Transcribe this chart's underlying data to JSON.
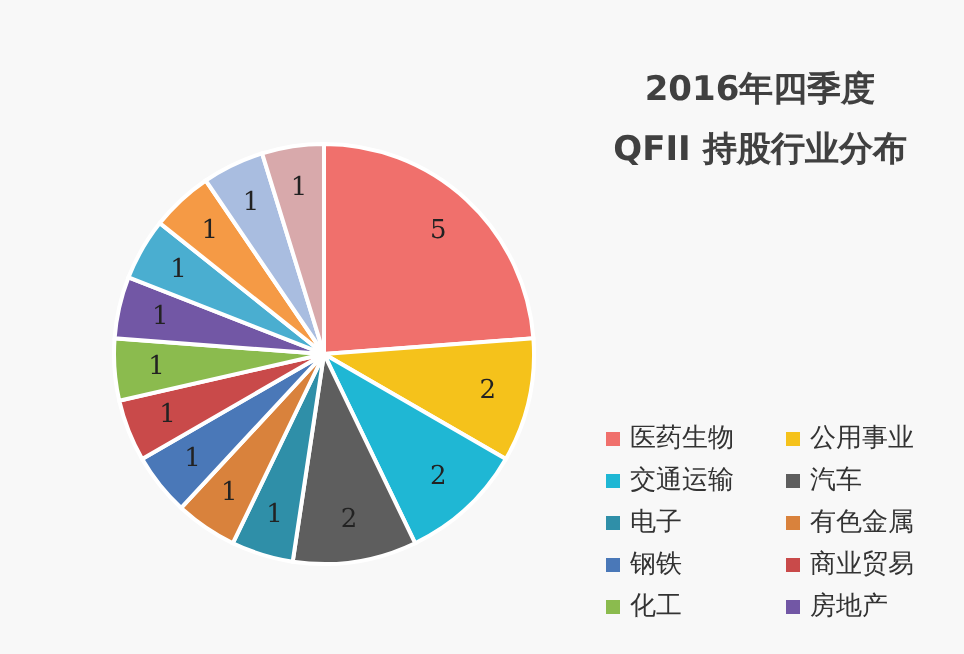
{
  "chart_data": {
    "type": "pie",
    "title": "2016年四季度",
    "subtitle": "QFII 持股行业分布",
    "categories": [
      "医药生物",
      "公用事业",
      "交通运输",
      "汽车",
      "电子",
      "有色金属",
      "钢铁",
      "商业贸易",
      "化工",
      "房地产",
      null,
      null,
      null,
      null
    ],
    "values": [
      5,
      2,
      2,
      2,
      1,
      1,
      1,
      1,
      1,
      1,
      1,
      1,
      1,
      1
    ],
    "colors": [
      "#f0706c",
      "#f5c21b",
      "#1fb7d4",
      "#5e5e5e",
      "#2f8fa8",
      "#d9823c",
      "#4a78b8",
      "#c94a4a",
      "#8bbb4e",
      "#7257a5",
      "#4aaed0",
      "#f59a45",
      "#a9bde0",
      "#d8a9ab"
    ],
    "data_labels": true,
    "legend": "bottom right"
  }
}
